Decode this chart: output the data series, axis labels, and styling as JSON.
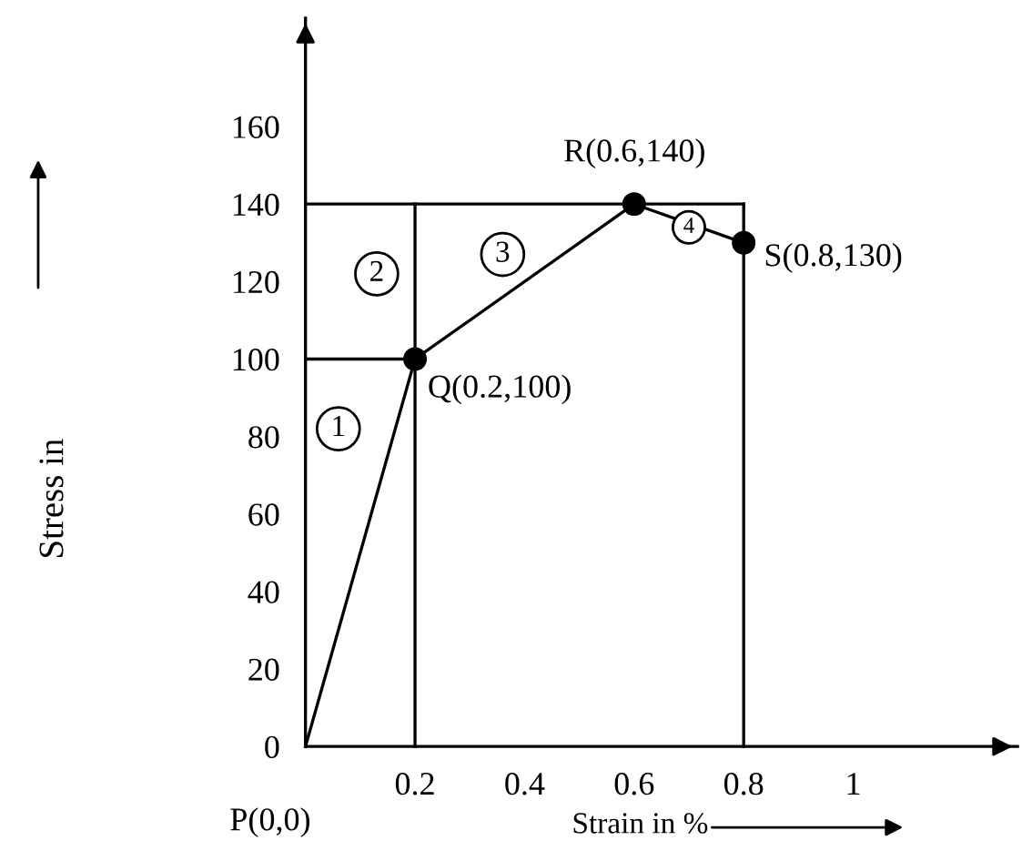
{
  "chart_data": {
    "type": "line",
    "xlabel": "Strain in %",
    "ylabel": "Stress in",
    "xlim": [
      0,
      1.3
    ],
    "ylim": [
      0,
      188
    ],
    "xticks": [
      0.2,
      0.4,
      0.6,
      0.8,
      1
    ],
    "yticks": [
      0,
      20,
      40,
      60,
      80,
      100,
      120,
      140,
      160
    ],
    "grid": false,
    "series": [
      {
        "color": "#000000",
        "x": [
          0,
          0.2,
          0.6,
          0.8
        ],
        "values": [
          0,
          100,
          140,
          130
        ],
        "marker": "none"
      },
      {
        "type": "scatter",
        "color": "#000000",
        "x": [
          0.2,
          0.6,
          0.8
        ],
        "values": [
          100,
          140,
          130
        ],
        "marker": "circle"
      },
      {
        "type": "line",
        "color": "#000000",
        "x": [
          0,
          0.2
        ],
        "values": [
          100,
          100
        ],
        "marker": "none"
      },
      {
        "type": "line",
        "color": "#000000",
        "x": [
          0,
          0.8
        ],
        "values": [
          140,
          140
        ],
        "marker": "none"
      },
      {
        "type": "line",
        "color": "#000000",
        "x": [
          0.2,
          0.2
        ],
        "values": [
          0,
          140
        ],
        "marker": "none"
      },
      {
        "type": "line",
        "color": "#000000",
        "x": [
          0.8,
          0.8
        ],
        "values": [
          0,
          140
        ],
        "marker": "none"
      }
    ],
    "annotations": [
      {
        "text": "P(0,0)",
        "x": 0,
        "y": 0
      },
      {
        "text": "Q(0.2,100)",
        "x": 0.2,
        "y": 100
      },
      {
        "text": "R(0.6,140)",
        "x": 0.6,
        "y": 140
      },
      {
        "text": "S(0.8,130)",
        "x": 0.8,
        "y": 130
      },
      {
        "text": "1",
        "x": 0.06,
        "y": 82
      },
      {
        "text": "2",
        "x": 0.13,
        "y": 122
      },
      {
        "text": "3",
        "x": 0.36,
        "y": 127
      },
      {
        "text": "4",
        "x": 0.7,
        "y": 134
      }
    ]
  }
}
